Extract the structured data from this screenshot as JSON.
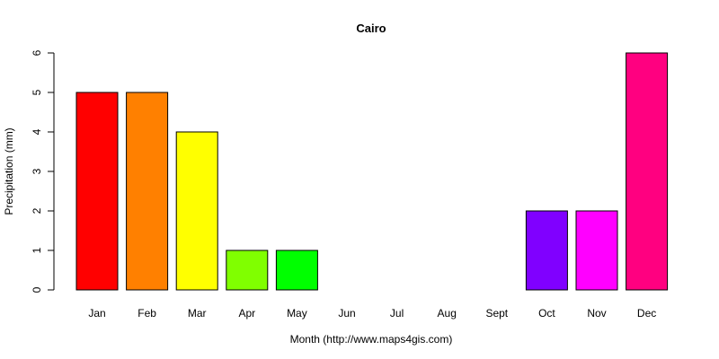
{
  "chart_data": {
    "type": "bar",
    "title": "Cairo",
    "xlabel": "Month (http://www.maps4gis.com)",
    "ylabel": "Precipitation (mm)",
    "ylim": [
      0,
      6
    ],
    "yticks": [
      0,
      1,
      2,
      3,
      4,
      5,
      6
    ],
    "categories": [
      "Jan",
      "Feb",
      "Mar",
      "Apr",
      "May",
      "Jun",
      "Jul",
      "Aug",
      "Sept",
      "Oct",
      "Nov",
      "Dec"
    ],
    "values": [
      5,
      5,
      4,
      1,
      1,
      0,
      0,
      0,
      0,
      2,
      2,
      6
    ],
    "colors": [
      "#ff0000",
      "#ff8000",
      "#ffff00",
      "#80ff00",
      "#00ff00",
      "#00ff80",
      "#00ffff",
      "#0080ff",
      "#0000ff",
      "#8000ff",
      "#ff00ff",
      "#ff0080"
    ],
    "grid": false,
    "legend": "none"
  }
}
